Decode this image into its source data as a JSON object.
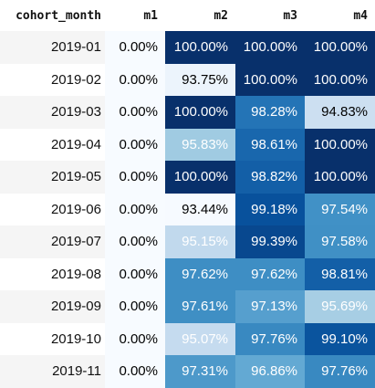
{
  "table": {
    "index_header": "cohort_month",
    "columns": [
      "m1",
      "m2",
      "m3",
      "m4"
    ],
    "rows": [
      {
        "label": "2019-01",
        "cells": [
          "0.00%",
          "100.00%",
          "100.00%",
          "100.00%"
        ],
        "values": [
          0.0,
          100.0,
          100.0,
          100.0
        ]
      },
      {
        "label": "2019-02",
        "cells": [
          "0.00%",
          "93.75%",
          "100.00%",
          "100.00%"
        ],
        "values": [
          0.0,
          93.75,
          100.0,
          100.0
        ]
      },
      {
        "label": "2019-03",
        "cells": [
          "0.00%",
          "100.00%",
          "98.28%",
          "94.83%"
        ],
        "values": [
          0.0,
          100.0,
          98.28,
          94.83
        ]
      },
      {
        "label": "2019-04",
        "cells": [
          "0.00%",
          "95.83%",
          "98.61%",
          "100.00%"
        ],
        "values": [
          0.0,
          95.83,
          98.61,
          100.0
        ]
      },
      {
        "label": "2019-05",
        "cells": [
          "0.00%",
          "100.00%",
          "98.82%",
          "100.00%"
        ],
        "values": [
          0.0,
          100.0,
          98.82,
          100.0
        ]
      },
      {
        "label": "2019-06",
        "cells": [
          "0.00%",
          "93.44%",
          "99.18%",
          "97.54%"
        ],
        "values": [
          0.0,
          93.44,
          99.18,
          97.54
        ]
      },
      {
        "label": "2019-07",
        "cells": [
          "0.00%",
          "95.15%",
          "99.39%",
          "97.58%"
        ],
        "values": [
          0.0,
          95.15,
          99.39,
          97.58
        ]
      },
      {
        "label": "2019-08",
        "cells": [
          "0.00%",
          "97.62%",
          "97.62%",
          "98.81%"
        ],
        "values": [
          0.0,
          97.62,
          97.62,
          98.81
        ]
      },
      {
        "label": "2019-09",
        "cells": [
          "0.00%",
          "97.61%",
          "97.13%",
          "95.69%"
        ],
        "values": [
          0.0,
          97.61,
          97.13,
          95.69
        ]
      },
      {
        "label": "2019-10",
        "cells": [
          "0.00%",
          "95.07%",
          "97.76%",
          "99.10%"
        ],
        "values": [
          0.0,
          95.07,
          97.76,
          99.1
        ]
      },
      {
        "label": "2019-11",
        "cells": [
          "0.00%",
          "97.31%",
          "96.86%",
          "97.76%"
        ],
        "values": [
          0.0,
          97.31,
          96.86,
          97.76
        ]
      }
    ]
  },
  "colors": {
    "scale": [
      "#f7fbff",
      "#deebf7",
      "#c6dbef",
      "#9ecae1",
      "#6baed6",
      "#4292c6",
      "#2171b5",
      "#08519c",
      "#08306b"
    ],
    "text_dark": "#000000",
    "text_light": "#ffffff",
    "vmin": 93.4,
    "vmax": 100.0
  }
}
